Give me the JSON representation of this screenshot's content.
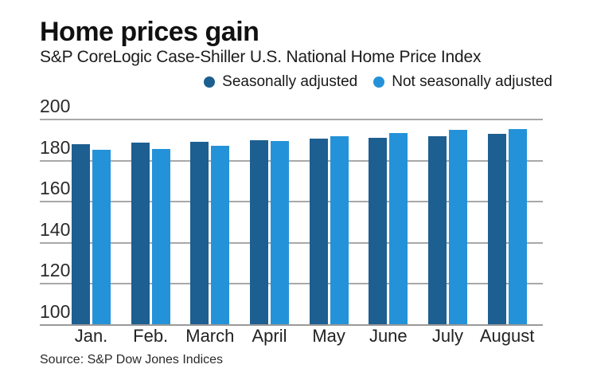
{
  "header": {
    "title": "Home prices gain",
    "subtitle": "S&P CoreLogic Case-Shiller U.S. National Home Price Index"
  },
  "legend": {
    "items": [
      {
        "label": "Seasonally adjusted",
        "color": "#1d5f90"
      },
      {
        "label": "Not seasonally adjusted",
        "color": "#2492d8"
      }
    ]
  },
  "footer": {
    "source": "Source: S&P Dow Jones Indices"
  },
  "colors": {
    "seasonally_adjusted": "#1d5f90",
    "not_seasonally_adjusted": "#2492d8",
    "gridline": "#a8a8a8",
    "text": "#1c1c1c",
    "background": "#ffffff"
  },
  "chart_data": {
    "type": "bar",
    "title": "Home prices gain",
    "subtitle": "S&P CoreLogic Case-Shiller U.S. National Home Price Index",
    "categories": [
      "Jan.",
      "Feb.",
      "March",
      "April",
      "May",
      "June",
      "July",
      "August"
    ],
    "series": [
      {
        "name": "Seasonally adjusted",
        "color": "#1d5f90",
        "values": [
          187.5,
          188.2,
          188.9,
          189.6,
          190.3,
          190.8,
          191.6,
          192.8
        ]
      },
      {
        "name": "Not seasonally adjusted",
        "color": "#2492d8",
        "values": [
          185.0,
          185.4,
          186.9,
          189.2,
          191.6,
          193.1,
          194.4,
          195.1
        ]
      }
    ],
    "xlabel": "",
    "ylabel": "",
    "ylim": [
      100,
      200
    ],
    "yticks": [
      100,
      120,
      140,
      160,
      180,
      200
    ],
    "grid": true,
    "legend_position": "top",
    "source": "Source: S&P Dow Jones Indices"
  }
}
